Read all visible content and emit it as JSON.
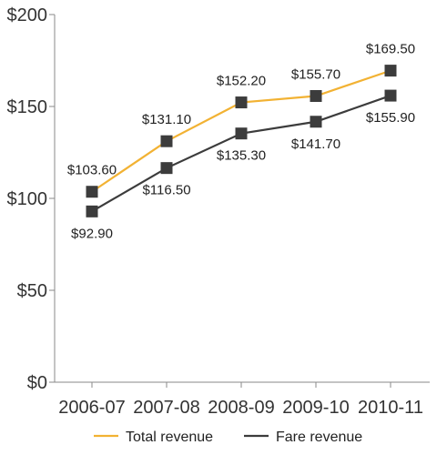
{
  "chart_data": {
    "type": "line",
    "title": "",
    "xlabel": "",
    "ylabel": "",
    "categories": [
      "2006-07",
      "2007-08",
      "2008-09",
      "2009-10",
      "2010-11"
    ],
    "ylim": [
      0,
      200
    ],
    "y_ticks": [
      0,
      50,
      100,
      150,
      200
    ],
    "y_tick_labels": [
      "$0",
      "$50",
      "$100",
      "$150",
      "$200"
    ],
    "grid": false,
    "legend_position": "bottom",
    "series": [
      {
        "name": "Total revenue",
        "color": "#F2B233",
        "marker_color": "#3C3C3C",
        "values": [
          103.6,
          131.1,
          152.2,
          155.7,
          169.5
        ],
        "labels": [
          "$103.60",
          "$131.10",
          "$152.20",
          "$155.70",
          "$169.50"
        ],
        "label_side": "above"
      },
      {
        "name": "Fare revenue",
        "color": "#3C3C3C",
        "marker_color": "#3C3C3C",
        "values": [
          92.9,
          116.5,
          135.3,
          141.7,
          155.9
        ],
        "labels": [
          "$92.90",
          "$116.50",
          "$135.30",
          "$141.70",
          "$155.90"
        ],
        "label_side": "below"
      }
    ]
  }
}
